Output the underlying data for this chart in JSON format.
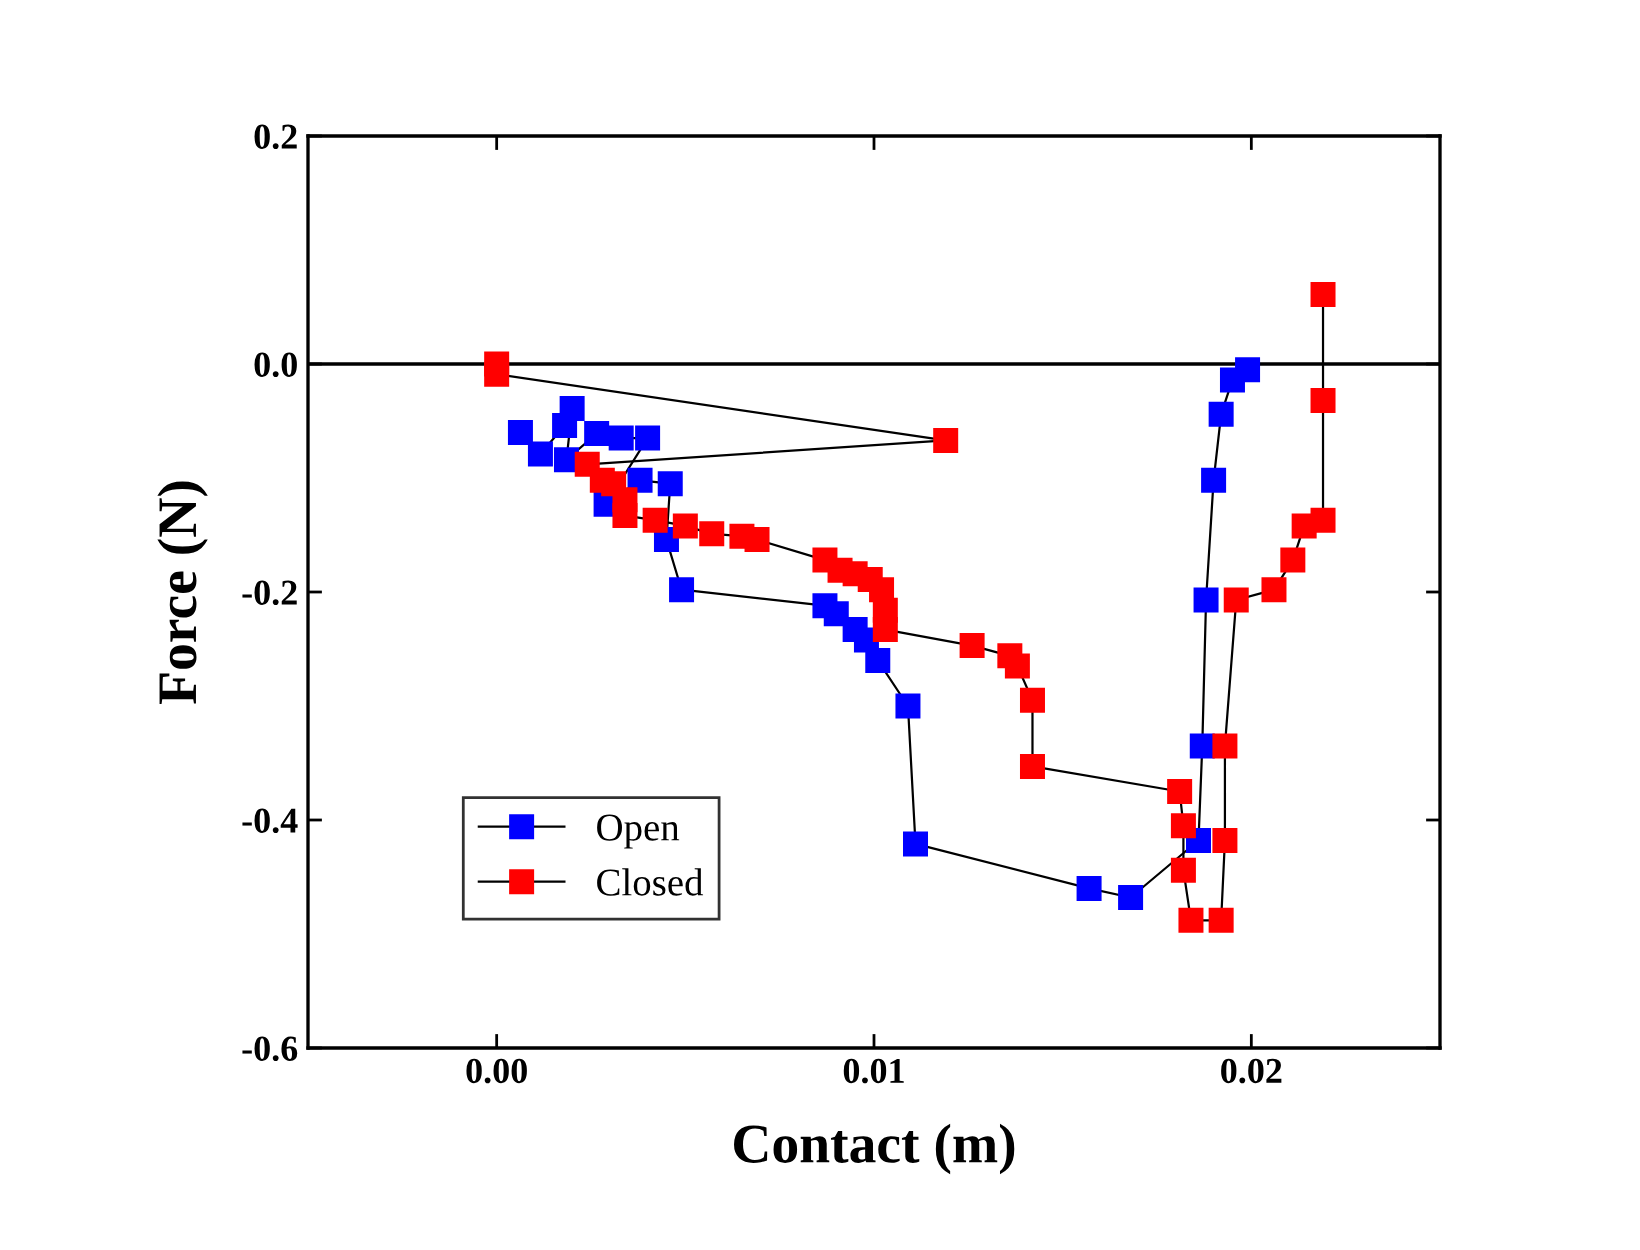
{
  "chart_data": {
    "type": "line",
    "xlabel": "Contact (m)",
    "ylabel": "Force (N)",
    "xlim": [
      -0.005,
      0.025
    ],
    "xticks": [
      {
        "value": 0.0,
        "label": "0.00"
      },
      {
        "value": 0.01,
        "label": "0.01"
      },
      {
        "value": 0.02,
        "label": "0.02"
      }
    ],
    "ylim": [
      -0.6,
      0.2
    ],
    "yticks": [
      {
        "value": -0.6,
        "label": "-0.6"
      },
      {
        "value": -0.4,
        "label": "-0.4"
      },
      {
        "value": -0.2,
        "label": "-0.2"
      },
      {
        "value": 0.0,
        "label": "0.0"
      },
      {
        "value": 0.2,
        "label": "0.2"
      }
    ],
    "marker": "square",
    "line_style": "solid",
    "legend": "bottom left",
    "grid": false,
    "ref_lines": [
      {
        "axis": "y",
        "value": 0,
        "color": "#000000"
      }
    ],
    "series": [
      {
        "name": "Open",
        "color": "#0000ff",
        "x": [
          0.00063,
          0.00116,
          0.0018,
          0.002,
          0.00185,
          0.00265,
          0.0033,
          0.004,
          0.0029,
          0.0038,
          0.0046,
          0.0045,
          0.0049,
          0.0087,
          0.009,
          0.0095,
          0.0098,
          0.0101,
          0.0109,
          0.0111,
          0.0157,
          0.0168,
          0.0186,
          0.0187,
          0.0188,
          0.019,
          0.0192,
          0.0195,
          0.0199
        ],
        "values": [
          -0.06,
          -0.079,
          -0.054,
          -0.039,
          -0.084,
          -0.061,
          -0.065,
          -0.065,
          -0.123,
          -0.102,
          -0.105,
          -0.154,
          -0.198,
          -0.212,
          -0.219,
          -0.233,
          -0.242,
          -0.26,
          -0.3,
          -0.421,
          -0.46,
          -0.468,
          -0.418,
          -0.335,
          -0.207,
          -0.102,
          -0.044,
          -0.014,
          -0.005
        ]
      },
      {
        "name": "Closed",
        "color": "#ff0000",
        "x": [
          0.0,
          0.0,
          0.0119,
          0.0024,
          0.0028,
          0.0031,
          0.0034,
          0.0034,
          0.0042,
          0.005,
          0.0057,
          0.0065,
          0.0069,
          0.0087,
          0.0091,
          0.0095,
          0.0099,
          0.0102,
          0.0103,
          0.0103,
          0.0126,
          0.0136,
          0.0138,
          0.0142,
          0.0142,
          0.0181,
          0.0182,
          0.0182,
          0.0184,
          0.0192,
          0.0193,
          0.0193,
          0.0196,
          0.0206,
          0.0211,
          0.0214,
          0.0219,
          0.0219,
          0.0219
        ],
        "values": [
          0.0,
          -0.009,
          -0.067,
          -0.088,
          -0.102,
          -0.105,
          -0.119,
          -0.133,
          -0.137,
          -0.142,
          -0.149,
          -0.151,
          -0.154,
          -0.172,
          -0.181,
          -0.184,
          -0.189,
          -0.198,
          -0.216,
          -0.233,
          -0.247,
          -0.256,
          -0.265,
          -0.295,
          -0.353,
          -0.375,
          -0.405,
          -0.444,
          -0.488,
          -0.488,
          -0.418,
          -0.335,
          -0.207,
          -0.198,
          -0.172,
          -0.142,
          -0.137,
          -0.032,
          0.061
        ]
      }
    ]
  }
}
